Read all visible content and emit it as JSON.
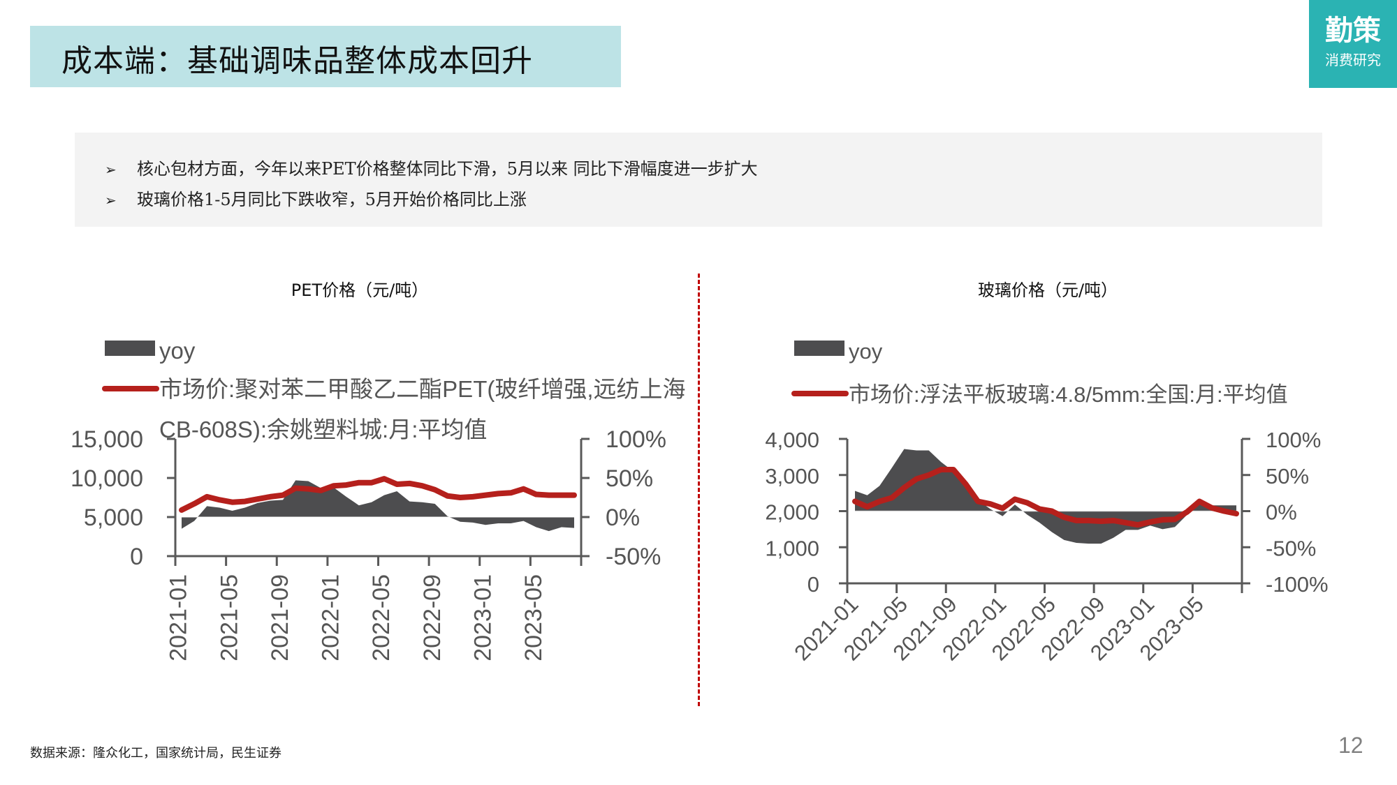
{
  "header": {
    "title": "成本端：基础调味品整体成本回升",
    "logo_main": "勤策",
    "logo_sub": "消费研究"
  },
  "summary": {
    "bullets": [
      "核心包材方面，今年以来PET价格整体同比下滑，5月以来 同比下滑幅度进一步扩大",
      "玻璃价格1-5月同比下跌收窄，5月开始价格同比上涨"
    ],
    "bullet_icon": "arrow-bullet-icon"
  },
  "colors": {
    "title_bg": "#bde3e6",
    "logo_bg": "#2bb3b3",
    "area": "#4d4d4f",
    "line": "#b5201c",
    "divider": "#c00000"
  },
  "chart_data": [
    {
      "type": "area",
      "title": "PET价格（元/吨）",
      "legend": [
        "yoy",
        "市场价:聚对苯二甲酸乙二酯PET(玻纤增强,远纺上海CB-608S):余姚塑料城:月:平均值"
      ],
      "legend_placement": "top-left",
      "x": [
        "2021-01",
        "2021-02",
        "2021-03",
        "2021-04",
        "2021-05",
        "2021-06",
        "2021-07",
        "2021-08",
        "2021-09",
        "2021-10",
        "2021-11",
        "2021-12",
        "2022-01",
        "2022-02",
        "2022-03",
        "2022-04",
        "2022-05",
        "2022-06",
        "2022-07",
        "2022-08",
        "2022-09",
        "2022-10",
        "2022-11",
        "2022-12",
        "2023-01",
        "2023-02",
        "2023-03",
        "2023-04",
        "2023-05",
        "2023-06",
        "2023-07",
        "2023-08"
      ],
      "x_tick_labels": [
        "2021-01",
        "2021-05",
        "2021-09",
        "2022-01",
        "2022-05",
        "2022-09",
        "2023-01",
        "2023-05"
      ],
      "x_label_rotation": 90,
      "series": [
        {
          "name": "yoy",
          "axis": "right",
          "kind": "area",
          "values": [
            -0.15,
            -0.05,
            0.14,
            0.12,
            0.08,
            0.12,
            0.18,
            0.21,
            0.22,
            0.47,
            0.46,
            0.37,
            0.38,
            0.26,
            0.15,
            0.19,
            0.28,
            0.33,
            0.2,
            0.19,
            0.17,
            0.01,
            -0.06,
            -0.07,
            -0.1,
            -0.08,
            -0.08,
            -0.05,
            -0.13,
            -0.18,
            -0.13,
            -0.14
          ]
        },
        {
          "name": "市场价:聚对苯二甲酸乙二酯PET(玻纤增强,远纺上海CB-608S):余姚塑料城:月:平均值",
          "axis": "left",
          "kind": "line",
          "values": [
            5900,
            6700,
            7600,
            7200,
            6900,
            7000,
            7300,
            7600,
            7800,
            8700,
            8600,
            8400,
            9000,
            9100,
            9400,
            9400,
            9900,
            9200,
            9300,
            9000,
            8500,
            7700,
            7500,
            7600,
            7800,
            8000,
            8100,
            8600,
            7900,
            7800,
            7800,
            7800
          ]
        }
      ],
      "left_axis": {
        "ylim": [
          0,
          15000
        ],
        "ticks": [
          "0",
          "5,000",
          "10,000",
          "15,000"
        ]
      },
      "right_axis": {
        "ylim": [
          -0.5,
          1.0
        ],
        "ticks": [
          "-50%",
          "0%",
          "50%",
          "100%"
        ]
      },
      "grid": false
    },
    {
      "type": "area",
      "title": "玻璃价格（元/吨）",
      "legend": [
        "yoy",
        "市场价:浮法平板玻璃:4.8/5mm:全国:月:平均值"
      ],
      "legend_placement": "top-left",
      "x": [
        "2021-01",
        "2021-02",
        "2021-03",
        "2021-04",
        "2021-05",
        "2021-06",
        "2021-07",
        "2021-08",
        "2021-09",
        "2021-10",
        "2021-11",
        "2021-12",
        "2022-01",
        "2022-02",
        "2022-03",
        "2022-04",
        "2022-05",
        "2022-06",
        "2022-07",
        "2022-08",
        "2022-09",
        "2022-10",
        "2022-11",
        "2022-12",
        "2023-01",
        "2023-02",
        "2023-03",
        "2023-04",
        "2023-05",
        "2023-06",
        "2023-07",
        "2023-08"
      ],
      "x_tick_labels": [
        "2021-01",
        "2021-05",
        "2021-09",
        "2022-01",
        "2022-05",
        "2022-09",
        "2023-01",
        "2023-05"
      ],
      "x_label_rotation": 45,
      "series": [
        {
          "name": "yoy",
          "axis": "right",
          "kind": "area",
          "values": [
            0.28,
            0.22,
            0.35,
            0.6,
            0.86,
            0.84,
            0.84,
            0.68,
            0.55,
            0.42,
            0.15,
            0.03,
            -0.07,
            0.09,
            -0.05,
            -0.16,
            -0.29,
            -0.4,
            -0.44,
            -0.45,
            -0.45,
            -0.37,
            -0.26,
            -0.26,
            -0.2,
            -0.25,
            -0.22,
            -0.05,
            0.12,
            0.08,
            0.08,
            0.08
          ]
        },
        {
          "name": "市场价:浮法平板玻璃:4.8/5mm:全国:月:平均值",
          "axis": "left",
          "kind": "line",
          "values": [
            2270,
            2120,
            2270,
            2370,
            2650,
            2890,
            3000,
            3150,
            3150,
            2750,
            2270,
            2200,
            2080,
            2330,
            2230,
            2060,
            2000,
            1830,
            1740,
            1740,
            1720,
            1740,
            1680,
            1620,
            1700,
            1760,
            1770,
            1980,
            2270,
            2090,
            2000,
            1930
          ]
        }
      ],
      "left_axis": {
        "ylim": [
          0,
          4000
        ],
        "ticks": [
          "0",
          "1,000",
          "2,000",
          "3,000",
          "4,000"
        ]
      },
      "right_axis": {
        "ylim": [
          -1.0,
          1.0
        ],
        "ticks": [
          "-100%",
          "-50%",
          "0%",
          "50%",
          "100%"
        ]
      },
      "grid": false
    }
  ],
  "footer": {
    "source": "数据来源：隆众化工，国家统计局，民生证券",
    "page_number": "12"
  }
}
